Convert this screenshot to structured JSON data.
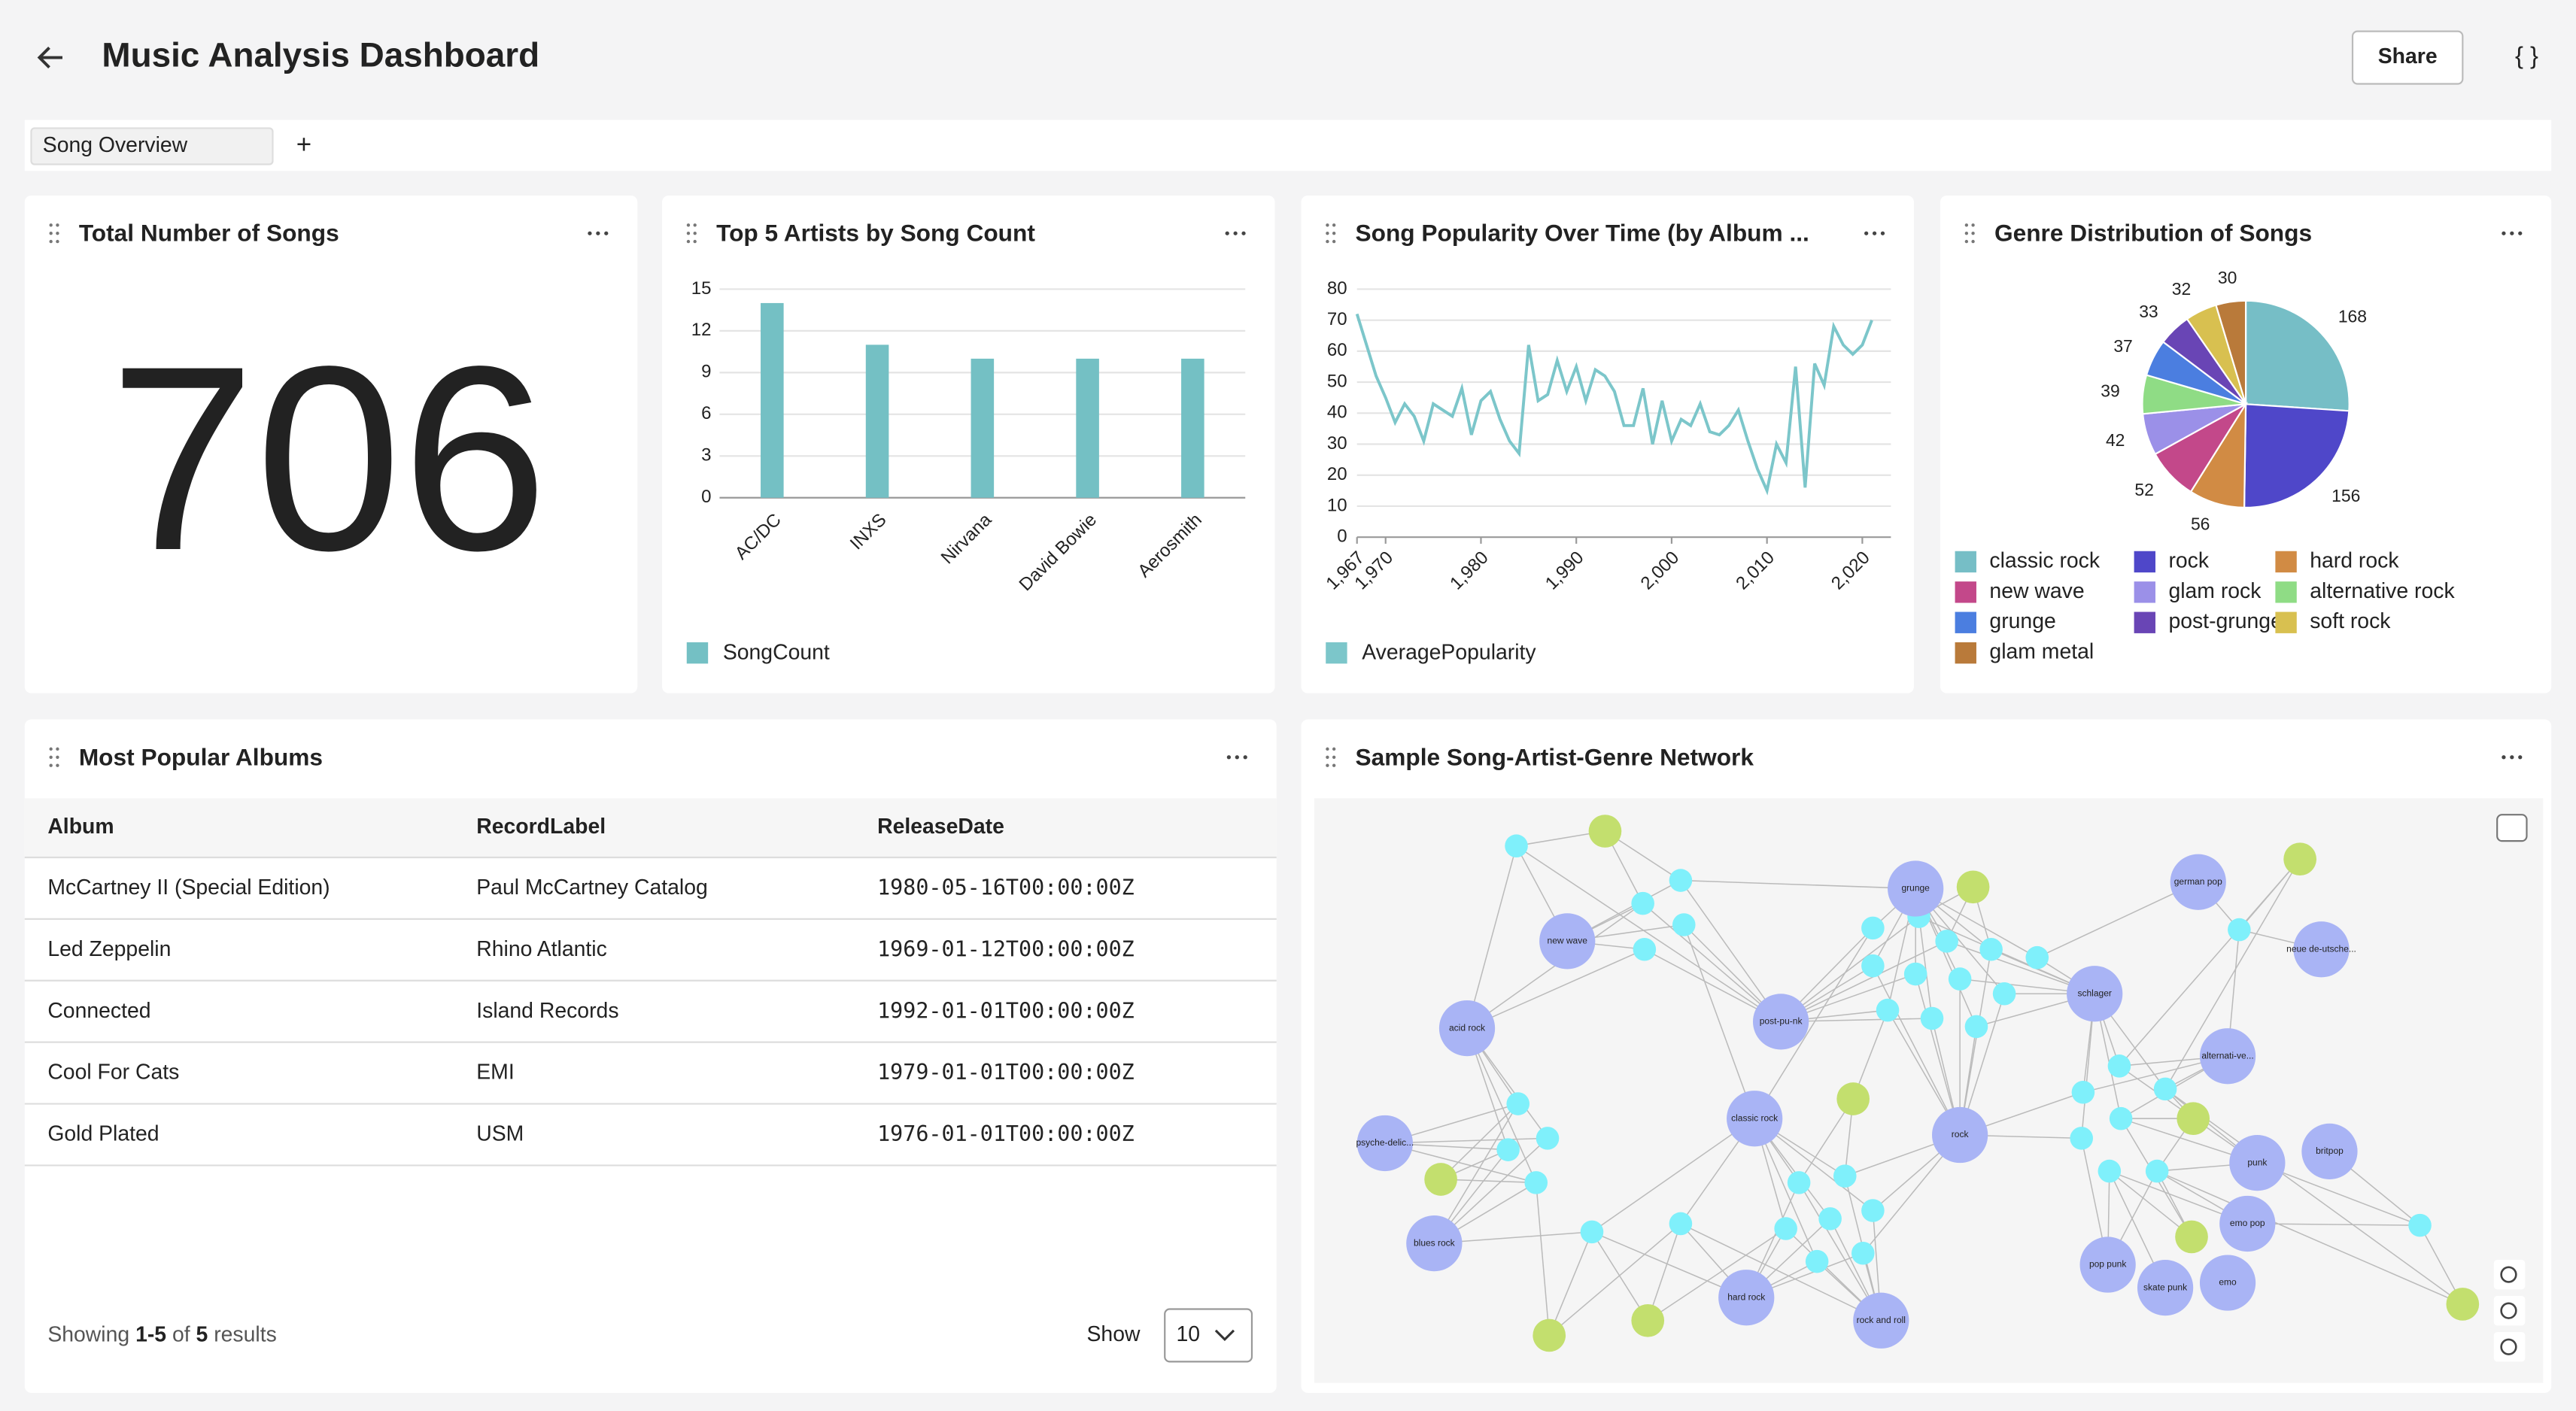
{
  "header": {
    "title": "Music Analysis Dashboard",
    "share": "Share",
    "code": "{ }"
  },
  "tabs": [
    "Song Overview"
  ],
  "add_tab": "+",
  "widgets": [
    {
      "title": "Total Number of Songs",
      "value": 706
    },
    {
      "title": "Top 5 Artists by Song Count",
      "chart_data": {
        "type": "bar",
        "categories": [
          "AC/DC",
          "INXS",
          "Nirvana",
          "David Bowie",
          "Aerosmith"
        ],
        "series": [
          {
            "name": "SongCount",
            "color": "#74c0c4",
            "values": [
              14,
              11,
              10,
              10,
              10
            ]
          }
        ],
        "ylim": [
          0,
          15
        ],
        "yticks": [
          0,
          3,
          6,
          9,
          12,
          15
        ],
        "grid": true
      }
    },
    {
      "title": "Song Popularity Over Time (by Album ...",
      "chart_data": {
        "type": "line",
        "x": [
          1967,
          1968,
          1969,
          1970,
          1971,
          1972,
          1973,
          1974,
          1975,
          1976,
          1977,
          1978,
          1979,
          1980,
          1981,
          1982,
          1983,
          1984,
          1985,
          1986,
          1987,
          1988,
          1989,
          1990,
          1991,
          1992,
          1993,
          1994,
          1995,
          1996,
          1997,
          1998,
          1999,
          2000,
          2001,
          2002,
          2003,
          2004,
          2005,
          2006,
          2007,
          2008,
          2009,
          2010,
          2011,
          2012,
          2013,
          2014,
          2015,
          2016,
          2017,
          2018,
          2019,
          2020,
          2021
        ],
        "series": [
          {
            "name": "AveragePopularity",
            "color": "#7cc6ca",
            "values": [
              72,
              62,
              52,
              45,
              37,
              43,
              39,
              31,
              43,
              41,
              39,
              48,
              33,
              44,
              47,
              38,
              31,
              27,
              62,
              44,
              46,
              57,
              47,
              55,
              44,
              54,
              52,
              47,
              36,
              36,
              48,
              30,
              44,
              31,
              38,
              36,
              43,
              34,
              33,
              36,
              41,
              31,
              22,
              15,
              30,
              24,
              55,
              16,
              56,
              49,
              68,
              62,
              59,
              62,
              70
            ]
          }
        ],
        "xlim": [
          1967,
          2023
        ],
        "xticks": [
          {
            "value": 1967,
            "label": "1,967"
          },
          {
            "value": 1970,
            "label": "1,970"
          },
          {
            "value": 1980,
            "label": "1,980"
          },
          {
            "value": 1990,
            "label": "1,990"
          },
          {
            "value": 2000,
            "label": "2,000"
          },
          {
            "value": 2010,
            "label": "2,010"
          },
          {
            "value": 2020,
            "label": "2,020"
          }
        ],
        "ylim": [
          0,
          80
        ],
        "yticks": [
          0,
          10,
          20,
          30,
          40,
          50,
          60,
          70,
          80
        ],
        "grid": true
      }
    },
    {
      "title": "Genre Distribution of Songs",
      "chart_data": {
        "type": "pie",
        "categories": [
          "classic rock",
          "rock",
          "hard rock",
          "new wave",
          "glam rock",
          "alternative rock",
          "grunge",
          "post-grunge",
          "soft rock",
          "glam metal"
        ],
        "values": [
          168,
          156,
          56,
          52,
          42,
          39,
          37,
          33,
          32,
          30
        ],
        "colors": [
          "#76bec6",
          "#4f47c9",
          "#d18b44",
          "#c3488a",
          "#9b90e8",
          "#8fdc85",
          "#4b7ee0",
          "#6945b5",
          "#d8c050",
          "#b97a3a"
        ]
      }
    },
    {
      "title": "Most Popular Albums",
      "table": {
        "columns": [
          "Album",
          "RecordLabel",
          "ReleaseDate"
        ],
        "rows": [
          [
            "McCartney II (Special Edition)",
            "Paul McCartney Catalog",
            "1980-05-16T00:00:00Z"
          ],
          [
            "Led Zeppelin",
            "Rhino Atlantic",
            "1969-01-12T00:00:00Z"
          ],
          [
            "Connected",
            "Island Records",
            "1992-01-01T00:00:00Z"
          ],
          [
            "Cool For Cats",
            "EMI",
            "1979-01-01T00:00:00Z"
          ],
          [
            "Gold Plated",
            "USM",
            "1976-01-01T00:00:00Z"
          ]
        ]
      },
      "footer": {
        "showing": "Showing",
        "range": "1-5",
        "of": "of",
        "total": 5,
        "results": "results",
        "show": "Show",
        "page_size": 10
      }
    },
    {
      "title": "Sample Song-Artist-Genre Network",
      "nodes": [
        "new wave",
        "post-pu-nk",
        "grunge",
        "german pop",
        "neue de-utsche...",
        "schlager",
        "acid rock",
        "psyche-delic...",
        "classic rock",
        "rock",
        "alternati-ve...",
        "blues rock",
        "punk",
        "britpop",
        "emo pop",
        "pop punk",
        "skate punk",
        "emo",
        "hard rock",
        "rock and roll"
      ]
    }
  ]
}
